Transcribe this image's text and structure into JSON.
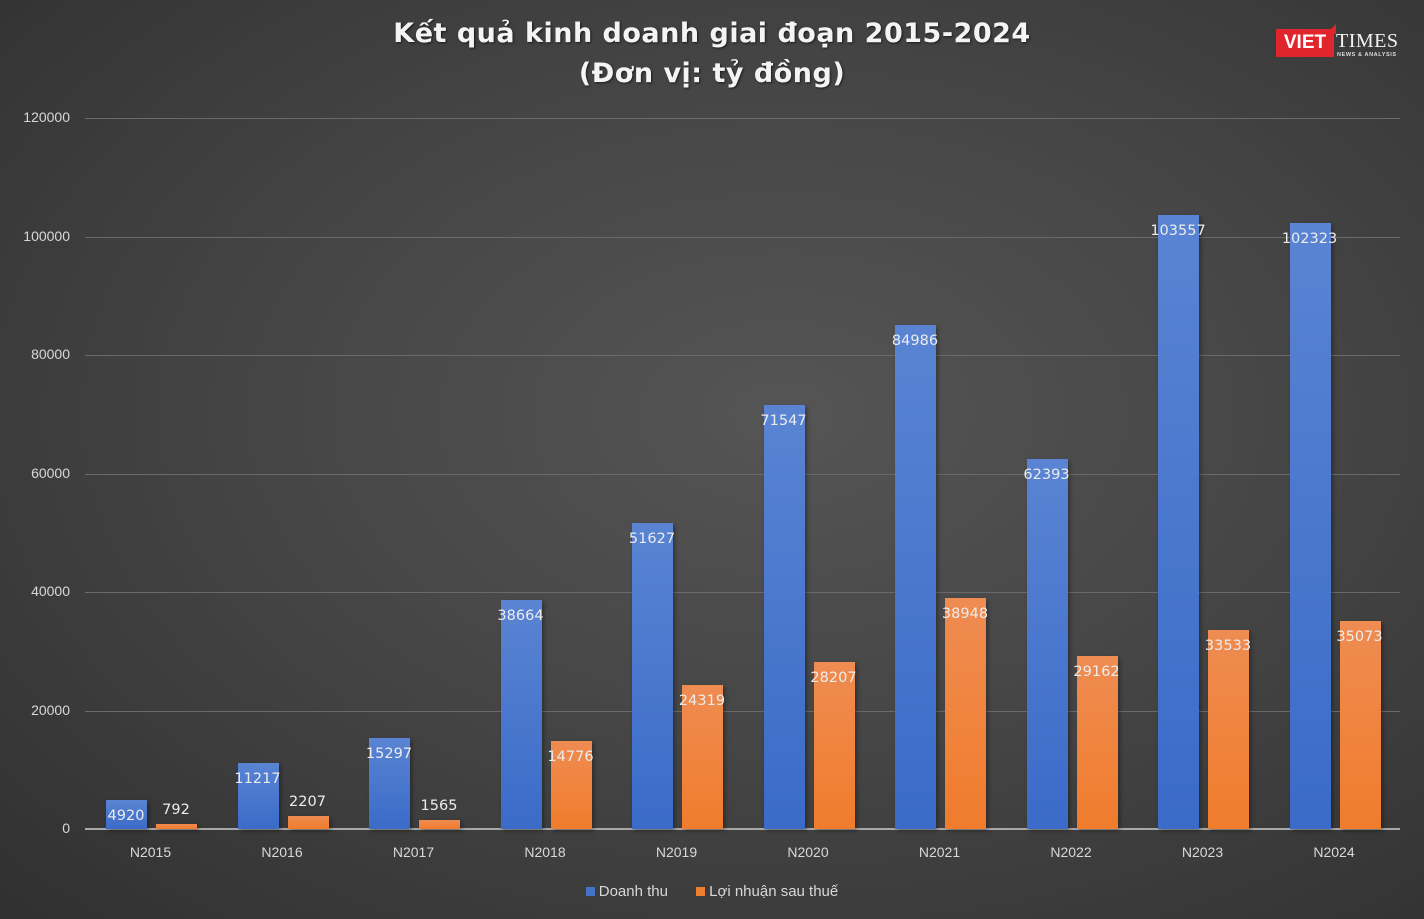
{
  "title": {
    "line1": "Kết quả kinh doanh giai đoạn 2015-2024",
    "line2": "(Đơn vị: tỷ đồng)"
  },
  "logo": {
    "viet": "VIET",
    "times": "TIMES",
    "tagline": "NEWS & ANALYSIS"
  },
  "colors": {
    "revenue": "#4472c4",
    "profit": "#ed7d31",
    "background": "#404040"
  },
  "y_axis": {
    "ticks": [
      "0",
      "20000",
      "40000",
      "60000",
      "80000",
      "100000",
      "120000"
    ]
  },
  "legend": {
    "items": [
      {
        "label": "Doanh thu",
        "color": "#4472c4"
      },
      {
        "label": "Lợi nhuận sau thuế",
        "color": "#ed7d31"
      }
    ]
  },
  "chart_data": {
    "type": "bar",
    "title": "Kết quả kinh doanh giai đoạn 2015-2024 (Đơn vị: tỷ đồng)",
    "xlabel": "",
    "ylabel": "",
    "ylim": [
      0,
      120000
    ],
    "yticks": [
      0,
      20000,
      40000,
      60000,
      80000,
      100000,
      120000
    ],
    "grid": true,
    "legend_position": "bottom",
    "categories": [
      "N2015",
      "N2016",
      "N2017",
      "N2018",
      "N2019",
      "N2020",
      "N2021",
      "N2022",
      "N2023",
      "N2024"
    ],
    "series": [
      {
        "name": "Doanh thu",
        "color": "#4472c4",
        "values": [
          4920,
          11217,
          15297,
          38664,
          51627,
          71547,
          84986,
          62393,
          103557,
          102323
        ]
      },
      {
        "name": "Lợi nhuận sau thuế",
        "color": "#ed7d31",
        "values": [
          792,
          2207,
          1565,
          14776,
          24319,
          28207,
          38948,
          29162,
          33533,
          35073
        ]
      }
    ]
  }
}
